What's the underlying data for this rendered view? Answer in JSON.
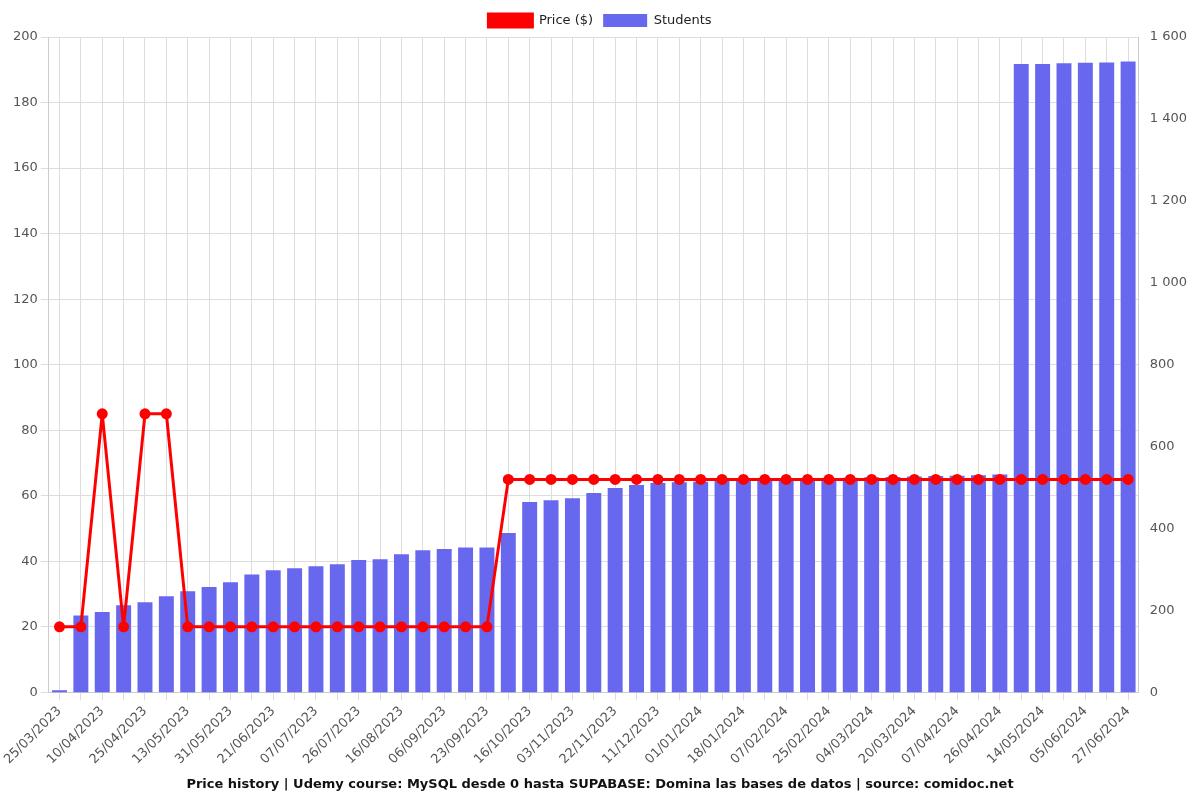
{
  "chart_data": {
    "type": "bar",
    "title": "Price history | Udemy course: MySQL desde 0 hasta SUPABASE: Domina las bases de datos | source: comidoc.net",
    "categories": [
      "25/03/2023",
      null,
      "10/04/2023",
      null,
      "25/04/2023",
      null,
      "13/05/2023",
      null,
      "31/05/2023",
      null,
      "21/06/2023",
      null,
      "07/07/2023",
      null,
      "26/07/2023",
      null,
      "16/08/2023",
      null,
      "06/09/2023",
      null,
      "23/09/2023",
      null,
      "16/10/2023",
      null,
      "03/11/2023",
      null,
      "22/11/2023",
      null,
      "11/12/2023",
      null,
      "01/01/2024",
      null,
      "18/01/2024",
      null,
      "07/02/2024",
      null,
      "25/02/2024",
      null,
      "04/03/2024",
      null,
      "20/03/2024",
      null,
      "07/04/2024",
      null,
      "26/04/2024",
      null,
      "14/05/2024",
      null,
      "05/06/2024",
      null,
      "27/06/2024"
    ],
    "series": [
      {
        "name": "Price ($)",
        "type": "line",
        "color": "#ff0000",
        "marker": "circle",
        "values": [
          20,
          20,
          85,
          20,
          85,
          85,
          20,
          20,
          20,
          20,
          20,
          20,
          20,
          20,
          20,
          20,
          20,
          20,
          20,
          20,
          20,
          65,
          65,
          65,
          65,
          65,
          65,
          65,
          65,
          65,
          65,
          65,
          65,
          65,
          65,
          65,
          65,
          65,
          65,
          65,
          65,
          65,
          65,
          65,
          65,
          65,
          65,
          65,
          65,
          65,
          65
        ]
      },
      {
        "name": "Students",
        "type": "bar",
        "axis": "y2",
        "color": "#6868ee",
        "values": [
          5,
          188,
          196,
          213,
          220,
          235,
          247,
          257,
          269,
          288,
          298,
          303,
          308,
          313,
          323,
          325,
          337,
          347,
          350,
          354,
          354,
          389,
          465,
          469,
          474,
          487,
          499,
          506,
          511,
          513,
          514,
          518,
          520,
          521,
          522,
          522,
          523,
          524,
          525,
          526,
          527,
          528,
          529,
          530,
          532,
          1534,
          1534,
          1536,
          1537,
          1538,
          1540
        ]
      }
    ],
    "ylim": [
      0,
      200
    ],
    "yticks": [
      0,
      20,
      40,
      60,
      80,
      100,
      120,
      140,
      160,
      180,
      200
    ],
    "y2lim": [
      0,
      1600
    ],
    "y2ticks": [
      0,
      200,
      400,
      600,
      800,
      {
        "value": 1000,
        "label": "1 000"
      },
      {
        "value": 1200,
        "label": "1 200"
      },
      {
        "value": 1400,
        "label": "1 400"
      },
      {
        "value": 1600,
        "label": "1 600"
      }
    ],
    "grid": true,
    "legend": "top"
  }
}
